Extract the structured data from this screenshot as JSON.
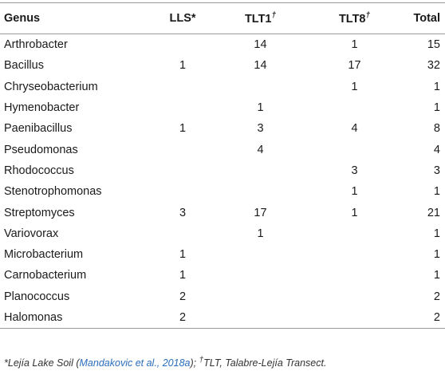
{
  "headers": {
    "genus": "Genus",
    "lls": "LLS*",
    "tlt1": "TLT1",
    "tlt1_mark": "†",
    "tlt8": "TLT8",
    "tlt8_mark": "†",
    "total": "Total"
  },
  "rows": [
    {
      "genus": "Arthrobacter",
      "lls": "",
      "tlt1": "14",
      "tlt8": "1",
      "total": "15"
    },
    {
      "genus": "Bacillus",
      "lls": "1",
      "tlt1": "14",
      "tlt8": "17",
      "total": "32"
    },
    {
      "genus": "Chryseobacterium",
      "lls": "",
      "tlt1": "",
      "tlt8": "1",
      "total": "1"
    },
    {
      "genus": "Hymenobacter",
      "lls": "",
      "tlt1": "1",
      "tlt8": "",
      "total": "1"
    },
    {
      "genus": "Paenibacillus",
      "lls": "1",
      "tlt1": "3",
      "tlt8": "4",
      "total": "8"
    },
    {
      "genus": "Pseudomonas",
      "lls": "",
      "tlt1": "4",
      "tlt8": "",
      "total": "4"
    },
    {
      "genus": "Rhodococcus",
      "lls": "",
      "tlt1": "",
      "tlt8": "3",
      "total": "3"
    },
    {
      "genus": "Stenotrophomonas",
      "lls": "",
      "tlt1": "",
      "tlt8": "1",
      "total": "1"
    },
    {
      "genus": "Streptomyces",
      "lls": "3",
      "tlt1": "17",
      "tlt8": "1",
      "total": "21"
    },
    {
      "genus": "Variovorax",
      "lls": "",
      "tlt1": "1",
      "tlt8": "",
      "total": "1"
    },
    {
      "genus": "Microbacterium",
      "lls": "1",
      "tlt1": "",
      "tlt8": "",
      "total": "1"
    },
    {
      "genus": "Carnobacterium",
      "lls": "1",
      "tlt1": "",
      "tlt8": "",
      "total": "1"
    },
    {
      "genus": "Planococcus",
      "lls": "2",
      "tlt1": "",
      "tlt8": "",
      "total": "2"
    },
    {
      "genus": "Halomonas",
      "lls": "2",
      "tlt1": "",
      "tlt8": "",
      "total": "2"
    }
  ],
  "footnote": {
    "part1": "*Lejía Lake Soil (",
    "link": "Mandakovic et al., 2018a",
    "part2": "); ",
    "dagger": "†",
    "part3": "TLT, Talabre-Lejía Transect."
  },
  "colors": {
    "rule": "#9a9a9a",
    "link": "#2a6ebb"
  }
}
